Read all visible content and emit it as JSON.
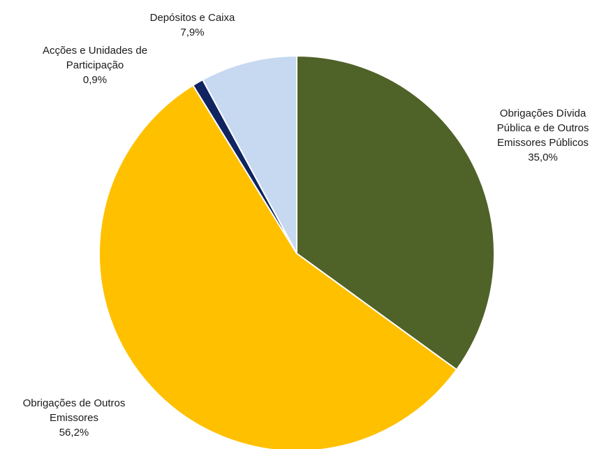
{
  "chart_data": {
    "type": "pie",
    "title": "",
    "start_angle_deg": 0,
    "direction": "clockwise",
    "slices": [
      {
        "label_lines": [
          "Obrigações Dívida",
          "Pública e de Outros",
          "Emissores Públicos"
        ],
        "value": 35.0,
        "value_label": "35,0%",
        "color": "#4f6228"
      },
      {
        "label_lines": [
          "Obrigações de Outros",
          "Emissores"
        ],
        "value": 56.2,
        "value_label": "56,2%",
        "color": "#ffc000"
      },
      {
        "label_lines": [
          "Acções e Unidades de",
          "Participação"
        ],
        "value": 0.9,
        "value_label": "0,9%",
        "color": "#0f2460"
      },
      {
        "label_lines": [
          "Depósitos e Caixa"
        ],
        "value": 7.9,
        "value_label": "7,9%",
        "color": "#c6d9f1"
      }
    ]
  }
}
